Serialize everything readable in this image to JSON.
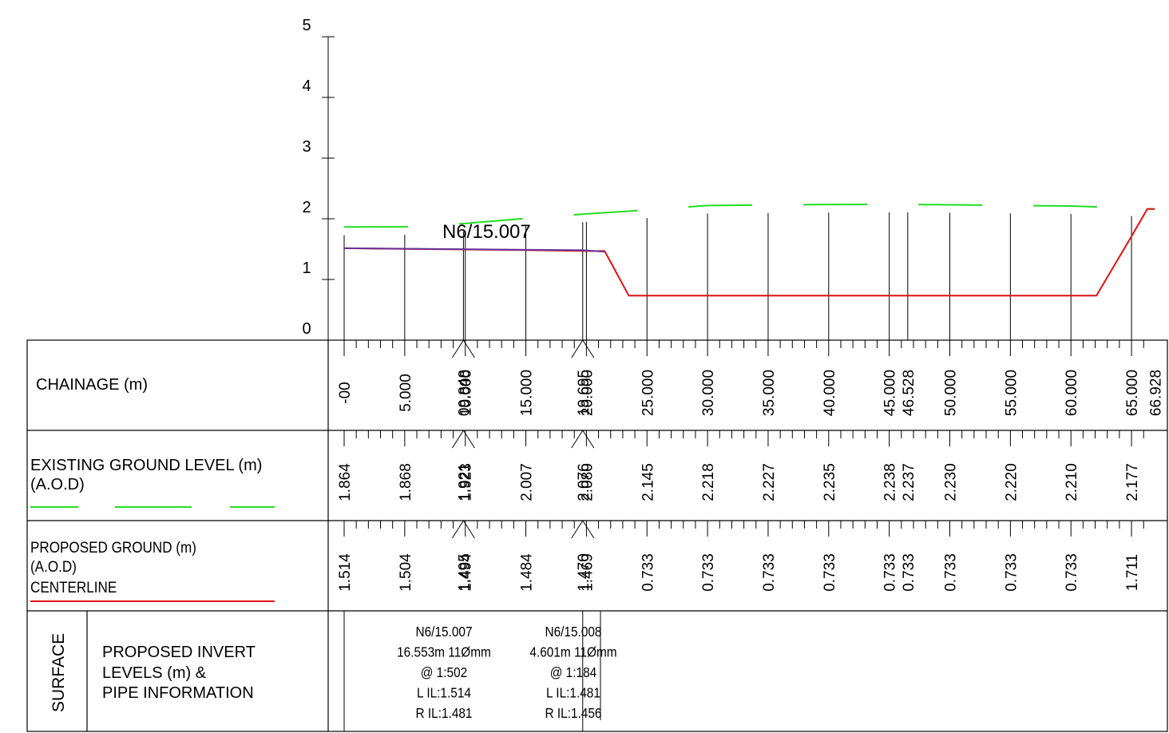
{
  "chart_data": {
    "type": "line",
    "y_axis": {
      "ylim": [
        0,
        5
      ],
      "ticks": [
        "0",
        "1",
        "2",
        "3",
        "4",
        "5"
      ]
    },
    "x_range": [
      0,
      66.928
    ],
    "pipe_label": "N6/15.007",
    "existing_ground": {
      "color": "#22dd22",
      "points": [
        [
          0,
          1.864
        ],
        [
          5,
          1.868
        ],
        [
          9.848,
          1.921
        ],
        [
          10,
          1.923
        ],
        [
          15,
          2.007
        ],
        [
          19.695,
          2.076
        ],
        [
          20,
          2.08
        ],
        [
          25,
          2.145
        ],
        [
          30,
          2.218
        ],
        [
          35,
          2.227
        ],
        [
          40,
          2.235
        ],
        [
          45,
          2.238
        ],
        [
          46.528,
          2.237
        ],
        [
          50,
          2.23
        ],
        [
          55,
          2.22
        ],
        [
          60,
          2.21
        ],
        [
          65,
          2.177
        ],
        [
          66.928,
          2.16
        ]
      ]
    },
    "proposed_ground": {
      "color": "#dd1111",
      "points": [
        [
          0,
          1.514
        ],
        [
          5,
          1.504
        ],
        [
          9.848,
          1.495
        ],
        [
          10,
          1.494
        ],
        [
          15,
          1.484
        ],
        [
          19.695,
          1.47
        ],
        [
          20,
          1.469
        ],
        [
          21.5,
          1.469
        ],
        [
          23.5,
          0.733
        ],
        [
          25,
          0.733
        ],
        [
          30,
          0.733
        ],
        [
          35,
          0.733
        ],
        [
          40,
          0.733
        ],
        [
          45,
          0.733
        ],
        [
          46.528,
          0.733
        ],
        [
          50,
          0.733
        ],
        [
          55,
          0.733
        ],
        [
          60,
          0.733
        ],
        [
          62.1,
          0.733
        ],
        [
          65,
          1.711
        ],
        [
          66.3,
          2.16
        ],
        [
          66.928,
          2.16
        ]
      ]
    },
    "pipe_invert": {
      "color": "#663399",
      "points": [
        [
          0,
          1.514
        ],
        [
          19.695,
          1.481
        ],
        [
          21.5,
          1.456
        ]
      ]
    },
    "verticals": [
      0,
      5,
      9.848,
      10,
      15,
      19.695,
      20,
      25,
      30,
      35,
      40,
      45,
      46.528,
      50,
      55,
      60,
      65
    ]
  },
  "rows": {
    "chainage": {
      "label": "CHAINAGE (m)",
      "values": [
        {
          "x": 0,
          "text": "-00"
        },
        {
          "x": 5,
          "text": "5.000"
        },
        {
          "x": 9.848,
          "text": "09.848"
        },
        {
          "x": 10,
          "text": "10.000"
        },
        {
          "x": 15,
          "text": "15.000"
        },
        {
          "x": 19.695,
          "text": "19.695"
        },
        {
          "x": 20,
          "text": "20.000"
        },
        {
          "x": 25,
          "text": "25.000"
        },
        {
          "x": 30,
          "text": "30.000"
        },
        {
          "x": 35,
          "text": "35.000"
        },
        {
          "x": 40,
          "text": "40.000"
        },
        {
          "x": 45,
          "text": "45.000"
        },
        {
          "x": 46.528,
          "text": "46.528"
        },
        {
          "x": 50,
          "text": "50.000"
        },
        {
          "x": 55,
          "text": "55.000"
        },
        {
          "x": 60,
          "text": "60.000"
        },
        {
          "x": 65,
          "text": "65.000"
        },
        {
          "x": 66.928,
          "text": "66.928"
        }
      ]
    },
    "existing": {
      "label_line1": "EXISTING GROUND LEVEL (m)",
      "label_line2": "(A.O.D)",
      "values": [
        {
          "x": 0,
          "text": "1.864"
        },
        {
          "x": 5,
          "text": "1.868"
        },
        {
          "x": 9.848,
          "text": "1.921"
        },
        {
          "x": 10,
          "text": "1.923"
        },
        {
          "x": 15,
          "text": "2.007"
        },
        {
          "x": 19.695,
          "text": "2.076"
        },
        {
          "x": 20,
          "text": "2.080"
        },
        {
          "x": 25,
          "text": "2.145"
        },
        {
          "x": 30,
          "text": "2.218"
        },
        {
          "x": 35,
          "text": "2.227"
        },
        {
          "x": 40,
          "text": "2.235"
        },
        {
          "x": 45,
          "text": "2.238"
        },
        {
          "x": 46.528,
          "text": "2.237"
        },
        {
          "x": 50,
          "text": "2.230"
        },
        {
          "x": 55,
          "text": "2.220"
        },
        {
          "x": 60,
          "text": "2.210"
        },
        {
          "x": 65,
          "text": "2.177"
        }
      ]
    },
    "proposed": {
      "label_line1": "PROPOSED GROUND (m)",
      "label_line2": "(A.O.D)",
      "label_line3": "CENTERLINE",
      "values": [
        {
          "x": 0,
          "text": "1.514"
        },
        {
          "x": 5,
          "text": "1.504"
        },
        {
          "x": 9.848,
          "text": "1.495"
        },
        {
          "x": 10,
          "text": "1.494"
        },
        {
          "x": 15,
          "text": "1.484"
        },
        {
          "x": 19.695,
          "text": "1.470"
        },
        {
          "x": 20,
          "text": "1.469"
        },
        {
          "x": 25,
          "text": "0.733"
        },
        {
          "x": 30,
          "text": "0.733"
        },
        {
          "x": 35,
          "text": "0.733"
        },
        {
          "x": 40,
          "text": "0.733"
        },
        {
          "x": 45,
          "text": "0.733"
        },
        {
          "x": 46.528,
          "text": "0.733"
        },
        {
          "x": 50,
          "text": "0.733"
        },
        {
          "x": 55,
          "text": "0.733"
        },
        {
          "x": 60,
          "text": "0.733"
        },
        {
          "x": 65,
          "text": "1.711"
        }
      ]
    },
    "invert": {
      "side_label": "SURFACE",
      "label_line1": "PROPOSED INVERT",
      "label_line2": "LEVELS (m) &",
      "label_line3": "PIPE INFORMATION",
      "pipes": [
        {
          "x_start": 0,
          "x_end": 19.695,
          "lines": [
            "N6/15.007",
            "16.553m 11Ømm",
            "@ 1:502",
            "L IL:1.514",
            "R IL:1.481"
          ]
        },
        {
          "x_start": 19.695,
          "x_end": 21.5,
          "lines": [
            "N6/15.008",
            "4.601m 11Ømm",
            "@ 1:184",
            "L IL:1.481",
            "R IL:1.456"
          ]
        }
      ]
    }
  }
}
